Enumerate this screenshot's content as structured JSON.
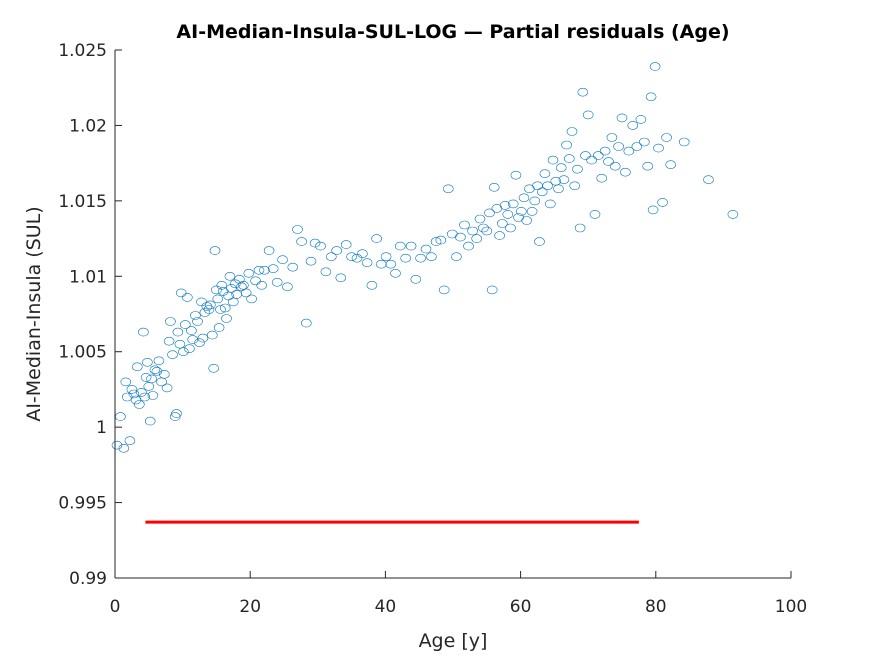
{
  "chart_data": {
    "type": "scatter",
    "title": "AI-Median-Insula-SUL-LOG — Partial residuals (Age)",
    "xlabel": "Age [y]",
    "ylabel": "AI-Median-Insula (SUL)",
    "xlim": [
      0,
      100
    ],
    "ylim": [
      0.99,
      1.025
    ],
    "x_ticks": [
      0,
      20,
      40,
      60,
      80,
      100
    ],
    "x_tick_labels": [
      "0",
      "20",
      "40",
      "60",
      "80",
      "100"
    ],
    "y_ticks": [
      0.99,
      0.995,
      1.0,
      1.005,
      1.01,
      1.015,
      1.02,
      1.025
    ],
    "y_tick_labels": [
      "0.99",
      "0.995",
      "1",
      "1.005",
      "1.01",
      "1.015",
      "1.02",
      "1.025"
    ],
    "grid": false,
    "marker_color": "#0072bd",
    "line_color": "#ff0000",
    "reference_line": {
      "x": [
        4.5,
        77.5
      ],
      "y": [
        0.9937,
        0.9937
      ]
    },
    "points": [
      [
        0.3,
        0.9988
      ],
      [
        0.8,
        1.0007
      ],
      [
        1.3,
        0.9986
      ],
      [
        1.6,
        1.003
      ],
      [
        1.8,
        1.002
      ],
      [
        2.2,
        0.9991
      ],
      [
        2.5,
        1.0025
      ],
      [
        2.8,
        1.0022
      ],
      [
        3.1,
        1.0018
      ],
      [
        3.3,
        1.004
      ],
      [
        3.6,
        1.0015
      ],
      [
        3.9,
        1.0023
      ],
      [
        4.2,
        1.0063
      ],
      [
        4.4,
        1.002
      ],
      [
        4.6,
        1.0033
      ],
      [
        4.8,
        1.0043
      ],
      [
        5.0,
        1.0027
      ],
      [
        5.2,
        1.0004
      ],
      [
        5.4,
        1.0032
      ],
      [
        5.6,
        1.0021
      ],
      [
        5.9,
        1.0038
      ],
      [
        6.2,
        1.0037
      ],
      [
        6.5,
        1.0044
      ],
      [
        6.9,
        1.003
      ],
      [
        7.3,
        1.0035
      ],
      [
        7.7,
        1.0026
      ],
      [
        8.0,
        1.0057
      ],
      [
        8.2,
        1.007
      ],
      [
        8.5,
        1.0048
      ],
      [
        8.9,
        1.0007
      ],
      [
        9.1,
        1.0009
      ],
      [
        9.3,
        1.0063
      ],
      [
        9.6,
        1.0055
      ],
      [
        9.8,
        1.0089
      ],
      [
        10.1,
        1.005
      ],
      [
        10.4,
        1.0068
      ],
      [
        10.7,
        1.0086
      ],
      [
        11.0,
        1.0052
      ],
      [
        11.3,
        1.0064
      ],
      [
        11.5,
        1.0058
      ],
      [
        11.9,
        1.0074
      ],
      [
        12.2,
        1.007
      ],
      [
        12.5,
        1.0056
      ],
      [
        12.8,
        1.0083
      ],
      [
        13.0,
        1.0059
      ],
      [
        13.3,
        1.0076
      ],
      [
        13.6,
        1.008
      ],
      [
        13.9,
        1.0078
      ],
      [
        14.1,
        1.0081
      ],
      [
        14.4,
        1.0061
      ],
      [
        14.6,
        1.0039
      ],
      [
        14.8,
        1.0117
      ],
      [
        15.0,
        1.0091
      ],
      [
        15.2,
        1.0085
      ],
      [
        15.4,
        1.0066
      ],
      [
        15.6,
        1.0078
      ],
      [
        15.8,
        1.0094
      ],
      [
        16.0,
        1.009
      ],
      [
        16.3,
        1.0079
      ],
      [
        16.5,
        1.0072
      ],
      [
        16.8,
        1.0087
      ],
      [
        17.0,
        1.01
      ],
      [
        17.2,
        1.0092
      ],
      [
        17.5,
        1.0083
      ],
      [
        17.8,
        1.0095
      ],
      [
        18.0,
        1.0088
      ],
      [
        18.4,
        1.0098
      ],
      [
        18.7,
        1.0093
      ],
      [
        19.0,
        1.0094
      ],
      [
        19.4,
        1.0089
      ],
      [
        19.8,
        1.0102
      ],
      [
        20.2,
        1.0085
      ],
      [
        20.8,
        1.0097
      ],
      [
        21.3,
        1.0104
      ],
      [
        21.7,
        1.0094
      ],
      [
        22.1,
        1.0104
      ],
      [
        22.8,
        1.0117
      ],
      [
        23.4,
        1.0105
      ],
      [
        24.0,
        1.0096
      ],
      [
        24.8,
        1.0111
      ],
      [
        25.5,
        1.0093
      ],
      [
        26.3,
        1.0106
      ],
      [
        27.0,
        1.0131
      ],
      [
        27.6,
        1.0123
      ],
      [
        28.3,
        1.0069
      ],
      [
        29.0,
        1.011
      ],
      [
        29.6,
        1.0122
      ],
      [
        30.4,
        1.012
      ],
      [
        31.2,
        1.0103
      ],
      [
        32.0,
        1.0113
      ],
      [
        32.8,
        1.0117
      ],
      [
        33.4,
        1.0099
      ],
      [
        34.2,
        1.0121
      ],
      [
        35.0,
        1.0113
      ],
      [
        35.8,
        1.0112
      ],
      [
        36.6,
        1.0115
      ],
      [
        37.3,
        1.0109
      ],
      [
        38.0,
        1.0094
      ],
      [
        38.7,
        1.0125
      ],
      [
        39.4,
        1.0108
      ],
      [
        40.1,
        1.0113
      ],
      [
        40.8,
        1.0108
      ],
      [
        41.5,
        1.0102
      ],
      [
        42.2,
        1.012
      ],
      [
        43.0,
        1.0112
      ],
      [
        43.8,
        1.012
      ],
      [
        44.5,
        1.0098
      ],
      [
        45.2,
        1.0112
      ],
      [
        46.0,
        1.0118
      ],
      [
        46.8,
        1.0113
      ],
      [
        47.5,
        1.0123
      ],
      [
        48.2,
        1.0124
      ],
      [
        48.7,
        1.0091
      ],
      [
        49.3,
        1.0158
      ],
      [
        49.9,
        1.0128
      ],
      [
        50.5,
        1.0113
      ],
      [
        51.1,
        1.0126
      ],
      [
        51.7,
        1.0134
      ],
      [
        52.3,
        1.012
      ],
      [
        52.9,
        1.013
      ],
      [
        53.5,
        1.0125
      ],
      [
        54.0,
        1.0138
      ],
      [
        54.5,
        1.0132
      ],
      [
        55.0,
        1.013
      ],
      [
        55.4,
        1.0142
      ],
      [
        55.8,
        1.0091
      ],
      [
        56.1,
        1.0159
      ],
      [
        56.5,
        1.0145
      ],
      [
        56.9,
        1.0127
      ],
      [
        57.3,
        1.0135
      ],
      [
        57.7,
        1.0147
      ],
      [
        58.1,
        1.0141
      ],
      [
        58.5,
        1.0132
      ],
      [
        58.9,
        1.0148
      ],
      [
        59.3,
        1.0167
      ],
      [
        59.7,
        1.0139
      ],
      [
        60.1,
        1.0143
      ],
      [
        60.5,
        1.0152
      ],
      [
        60.9,
        1.0137
      ],
      [
        61.3,
        1.0158
      ],
      [
        61.7,
        1.0143
      ],
      [
        62.1,
        1.015
      ],
      [
        62.5,
        1.016
      ],
      [
        62.8,
        1.0123
      ],
      [
        63.2,
        1.0156
      ],
      [
        63.6,
        1.0168
      ],
      [
        64.0,
        1.016
      ],
      [
        64.4,
        1.0148
      ],
      [
        64.8,
        1.0177
      ],
      [
        65.2,
        1.0163
      ],
      [
        65.6,
        1.0158
      ],
      [
        66.0,
        1.0172
      ],
      [
        66.4,
        1.0164
      ],
      [
        66.8,
        1.0187
      ],
      [
        67.2,
        1.0178
      ],
      [
        67.6,
        1.0196
      ],
      [
        68.0,
        1.016
      ],
      [
        68.4,
        1.0171
      ],
      [
        68.8,
        1.0132
      ],
      [
        69.2,
        1.0222
      ],
      [
        69.6,
        1.018
      ],
      [
        70.0,
        1.0207
      ],
      [
        70.5,
        1.0177
      ],
      [
        71.0,
        1.0141
      ],
      [
        71.5,
        1.018
      ],
      [
        72.0,
        1.0165
      ],
      [
        72.5,
        1.0183
      ],
      [
        73.0,
        1.0176
      ],
      [
        73.5,
        1.0192
      ],
      [
        74.0,
        1.0173
      ],
      [
        74.5,
        1.0186
      ],
      [
        75.0,
        1.0205
      ],
      [
        75.5,
        1.0169
      ],
      [
        76.0,
        1.0183
      ],
      [
        76.6,
        1.02
      ],
      [
        77.2,
        1.0186
      ],
      [
        77.8,
        1.0204
      ],
      [
        78.3,
        1.0189
      ],
      [
        78.8,
        1.0173
      ],
      [
        79.3,
        1.0219
      ],
      [
        79.6,
        1.0144
      ],
      [
        79.9,
        1.0239
      ],
      [
        80.4,
        1.0185
      ],
      [
        81.0,
        1.0149
      ],
      [
        81.6,
        1.0192
      ],
      [
        82.2,
        1.0174
      ],
      [
        84.2,
        1.0189
      ],
      [
        87.8,
        1.0164
      ],
      [
        91.4,
        1.0141
      ]
    ]
  }
}
